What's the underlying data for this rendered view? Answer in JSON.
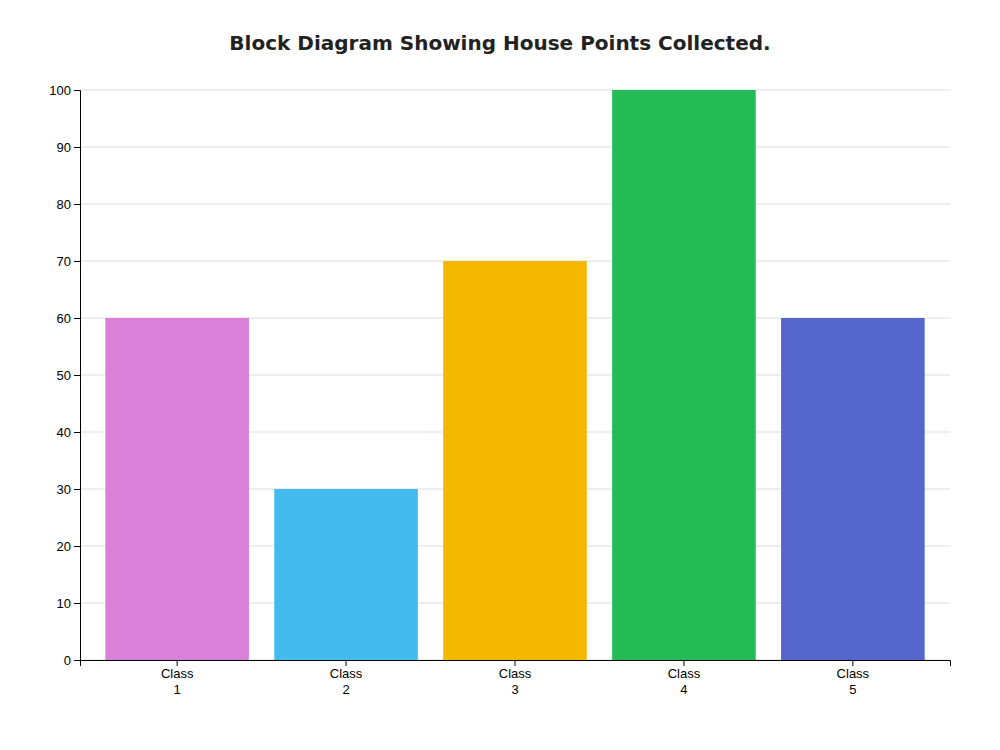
{
  "chart_data": {
    "type": "bar",
    "title": "Block Diagram Showing House Points Collected.",
    "categories": [
      "Class\n1",
      "Class\n2",
      "Class\n3",
      "Class\n4",
      "Class\n5"
    ],
    "values": [
      60,
      30,
      70,
      100,
      60
    ],
    "colors": [
      "#d980d9",
      "#44bbee",
      "#f5b800",
      "#22bb55",
      "#5566cc"
    ],
    "ylim": [
      0,
      100
    ],
    "yticks": [
      0,
      10,
      20,
      30,
      40,
      50,
      60,
      70,
      80,
      90,
      100
    ],
    "grid": true
  }
}
